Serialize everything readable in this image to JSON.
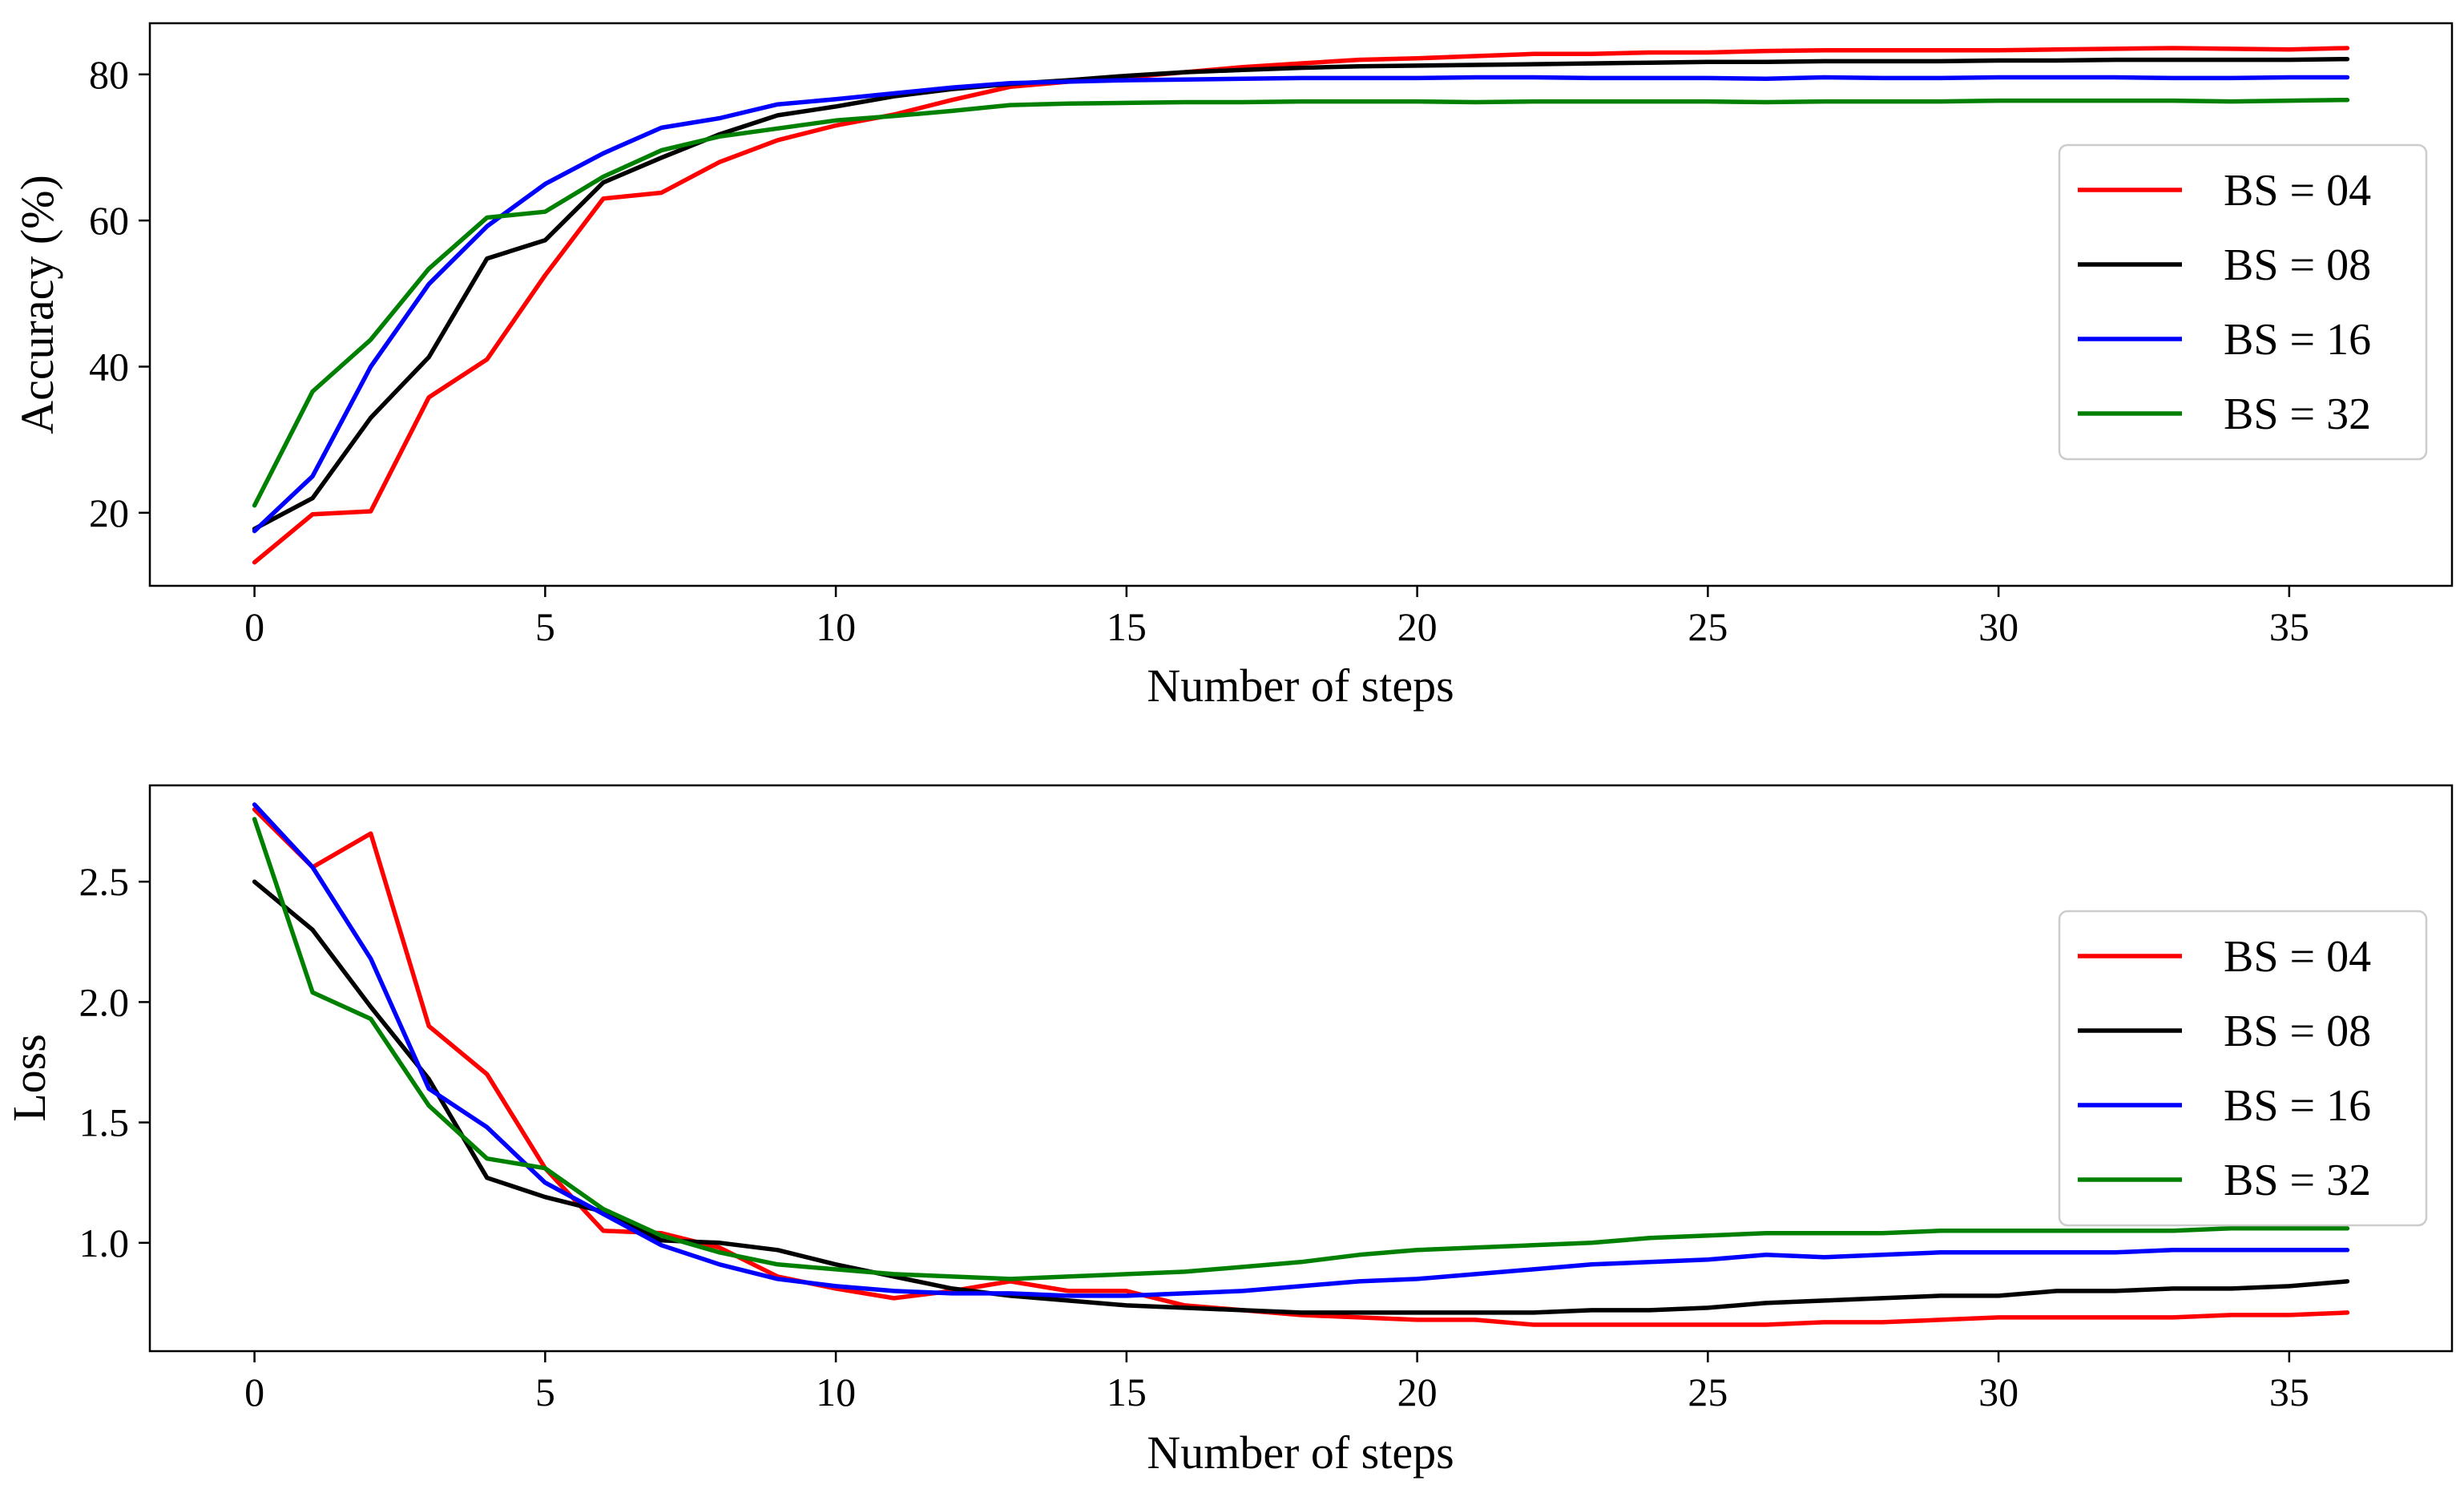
{
  "figure": {
    "description_free": true
  },
  "chart_data": [
    {
      "type": "line",
      "title": "",
      "xlabel": "Number of steps",
      "ylabel": "Accuracy (%)",
      "xlim": [
        -1.8,
        37.8
      ],
      "ylim": [
        10,
        87
      ],
      "xticks": [
        0,
        5,
        10,
        15,
        20,
        25,
        30,
        35
      ],
      "yticks": [
        20,
        40,
        60,
        80
      ],
      "legend_position": "center-right",
      "x": [
        0,
        1,
        2,
        3,
        4,
        5,
        6,
        7,
        8,
        9,
        10,
        11,
        12,
        13,
        14,
        15,
        16,
        17,
        18,
        19,
        20,
        21,
        22,
        23,
        24,
        25,
        26,
        27,
        28,
        29,
        30,
        31,
        32,
        33,
        34,
        35,
        36
      ],
      "series": [
        {
          "name": "BS = 04",
          "color": "#ff0000",
          "values": [
            13.2,
            19.8,
            20.2,
            35.8,
            41,
            52.5,
            63,
            63.8,
            68,
            71,
            73,
            74.5,
            76.5,
            78.3,
            79,
            79.6,
            80.3,
            81,
            81.5,
            82,
            82.2,
            82.5,
            82.8,
            82.8,
            83,
            83,
            83.2,
            83.3,
            83.3,
            83.3,
            83.3,
            83.4,
            83.5,
            83.6,
            83.5,
            83.4,
            83.6
          ]
        },
        {
          "name": "BS = 08",
          "color": "#000000",
          "values": [
            17.8,
            22,
            33,
            41.3,
            54.8,
            57.3,
            65.2,
            68.6,
            71.8,
            74.4,
            75.6,
            77,
            78,
            78.7,
            79.2,
            79.8,
            80.3,
            80.6,
            80.9,
            81.1,
            81.2,
            81.3,
            81.4,
            81.5,
            81.6,
            81.7,
            81.7,
            81.8,
            81.8,
            81.8,
            81.9,
            81.9,
            82,
            82,
            82,
            82,
            82.1
          ]
        },
        {
          "name": "BS = 16",
          "color": "#0000ff",
          "values": [
            17.5,
            25,
            40,
            51.3,
            59.2,
            65,
            69.2,
            72.7,
            74,
            75.9,
            76.6,
            77.4,
            78.2,
            78.8,
            79,
            79.2,
            79.3,
            79.4,
            79.5,
            79.5,
            79.5,
            79.6,
            79.6,
            79.5,
            79.5,
            79.5,
            79.4,
            79.6,
            79.5,
            79.5,
            79.6,
            79.6,
            79.6,
            79.5,
            79.5,
            79.6,
            79.6
          ]
        },
        {
          "name": "BS = 32",
          "color": "#008000",
          "values": [
            21,
            36.6,
            43.7,
            53.4,
            60.4,
            61.2,
            66,
            69.6,
            71.5,
            72.6,
            73.7,
            74.3,
            75,
            75.8,
            76,
            76.1,
            76.2,
            76.2,
            76.3,
            76.3,
            76.3,
            76.2,
            76.3,
            76.3,
            76.3,
            76.3,
            76.2,
            76.3,
            76.3,
            76.3,
            76.4,
            76.4,
            76.4,
            76.4,
            76.3,
            76.4,
            76.5
          ]
        }
      ]
    },
    {
      "type": "line",
      "title": "",
      "xlabel": "Number of steps",
      "ylabel": "Loss",
      "xlim": [
        -1.8,
        37.8
      ],
      "ylim": [
        0.55,
        2.9
      ],
      "xticks": [
        0,
        5,
        10,
        15,
        20,
        25,
        30,
        35
      ],
      "yticks": [
        1.0,
        1.5,
        2.0,
        2.5
      ],
      "ytick_labels": [
        "1.0",
        "1.5",
        "2.0",
        "2.5"
      ],
      "legend_position": "center-right",
      "x": [
        0,
        1,
        2,
        3,
        4,
        5,
        6,
        7,
        8,
        9,
        10,
        11,
        12,
        13,
        14,
        15,
        16,
        17,
        18,
        19,
        20,
        21,
        22,
        23,
        24,
        25,
        26,
        27,
        28,
        29,
        30,
        31,
        32,
        33,
        34,
        35,
        36
      ],
      "series": [
        {
          "name": "BS = 04",
          "color": "#ff0000",
          "values": [
            2.8,
            2.56,
            2.7,
            1.9,
            1.7,
            1.31,
            1.05,
            1.04,
            0.98,
            0.86,
            0.81,
            0.77,
            0.8,
            0.84,
            0.8,
            0.8,
            0.74,
            0.72,
            0.7,
            0.69,
            0.68,
            0.68,
            0.66,
            0.66,
            0.66,
            0.66,
            0.66,
            0.67,
            0.67,
            0.68,
            0.69,
            0.69,
            0.69,
            0.69,
            0.7,
            0.7,
            0.71
          ]
        },
        {
          "name": "BS = 08",
          "color": "#000000",
          "values": [
            2.5,
            2.3,
            1.98,
            1.68,
            1.27,
            1.19,
            1.13,
            1.01,
            1.0,
            0.97,
            0.91,
            0.86,
            0.81,
            0.78,
            0.76,
            0.74,
            0.73,
            0.72,
            0.71,
            0.71,
            0.71,
            0.71,
            0.71,
            0.72,
            0.72,
            0.73,
            0.75,
            0.76,
            0.77,
            0.78,
            0.78,
            0.8,
            0.8,
            0.81,
            0.81,
            0.82,
            0.84
          ]
        },
        {
          "name": "BS = 16",
          "color": "#0000ff",
          "values": [
            2.82,
            2.56,
            2.18,
            1.64,
            1.48,
            1.25,
            1.12,
            0.99,
            0.91,
            0.85,
            0.82,
            0.8,
            0.79,
            0.79,
            0.78,
            0.78,
            0.79,
            0.8,
            0.82,
            0.84,
            0.85,
            0.87,
            0.89,
            0.91,
            0.92,
            0.93,
            0.95,
            0.94,
            0.95,
            0.96,
            0.96,
            0.96,
            0.96,
            0.97,
            0.97,
            0.97,
            0.97
          ]
        },
        {
          "name": "BS = 32",
          "color": "#008000",
          "values": [
            2.76,
            2.04,
            1.93,
            1.57,
            1.35,
            1.31,
            1.14,
            1.03,
            0.96,
            0.91,
            0.89,
            0.87,
            0.86,
            0.85,
            0.86,
            0.87,
            0.88,
            0.9,
            0.92,
            0.95,
            0.97,
            0.98,
            0.99,
            1.0,
            1.02,
            1.03,
            1.04,
            1.04,
            1.04,
            1.05,
            1.05,
            1.05,
            1.05,
            1.05,
            1.06,
            1.06,
            1.06
          ]
        }
      ]
    }
  ]
}
